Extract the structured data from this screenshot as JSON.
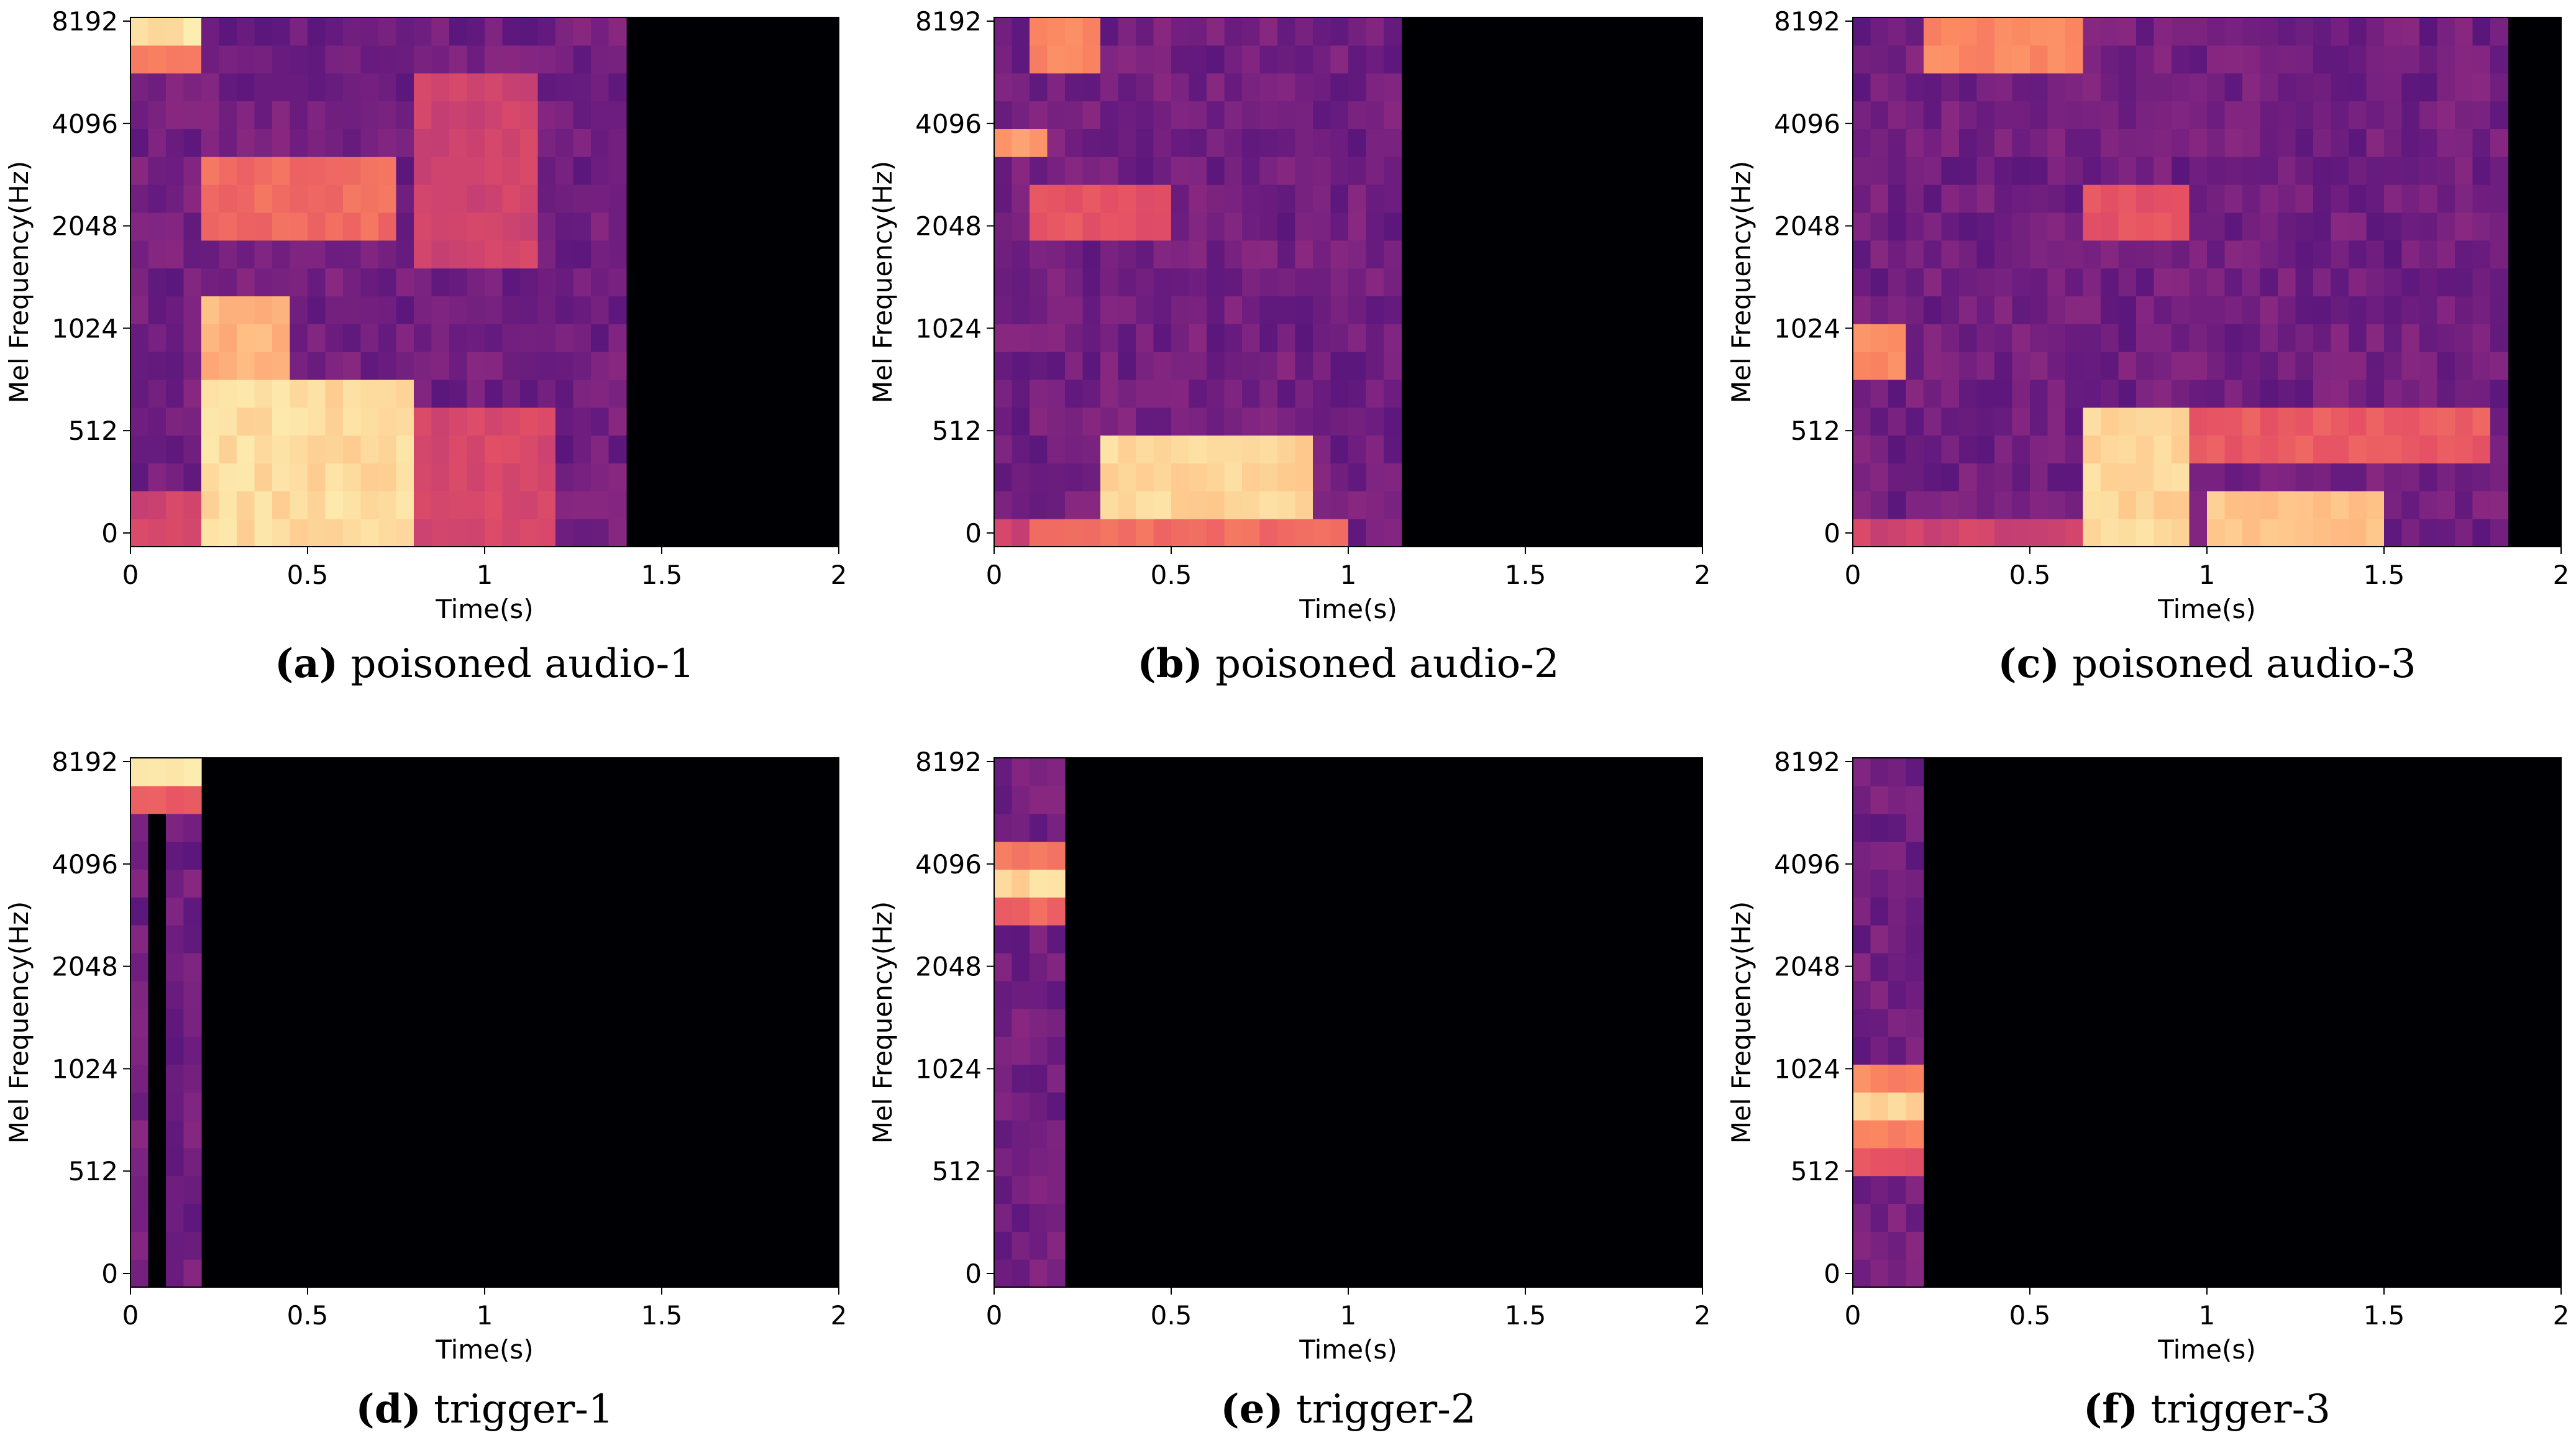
{
  "chart_data": [
    {
      "type": "heatmap",
      "id": "a",
      "caption_letter": "(a)",
      "caption_text": " poisoned audio-1",
      "xlabel": "Time(s)",
      "ylabel": "Mel Frequency(Hz)",
      "xlim": [
        0,
        2
      ],
      "x_ticks": [
        0,
        0.5,
        1,
        1.5,
        2
      ],
      "x_tick_labels": [
        "0",
        "0.5",
        "1",
        "1.5",
        "2"
      ],
      "y_tick_labels": [
        "0",
        "512",
        "1024",
        "2048",
        "4096",
        "8192"
      ],
      "colormap": "magma",
      "active_end_s": 1.42,
      "regions": [
        {
          "t": [
            0.0,
            0.18
          ],
          "mel": [
            0,
            2
          ],
          "level": 0.6
        },
        {
          "t": [
            0.0,
            0.18
          ],
          "mel": [
            18,
            19
          ],
          "level": 0.98
        },
        {
          "t": [
            0.0,
            0.18
          ],
          "mel": [
            17,
            18
          ],
          "level": 0.75
        },
        {
          "t": [
            0.2,
            0.78
          ],
          "mel": [
            0,
            6
          ],
          "level": 0.96
        },
        {
          "t": [
            0.2,
            0.45
          ],
          "mel": [
            6,
            9
          ],
          "level": 0.88
        },
        {
          "t": [
            0.2,
            0.75
          ],
          "mel": [
            11,
            14
          ],
          "level": 0.72
        },
        {
          "t": [
            0.8,
            1.2
          ],
          "mel": [
            0,
            5
          ],
          "level": 0.62
        },
        {
          "t": [
            0.85,
            1.15
          ],
          "mel": [
            10,
            17
          ],
          "level": 0.6
        }
      ]
    },
    {
      "type": "heatmap",
      "id": "b",
      "caption_letter": "(b)",
      "caption_text": " poisoned audio-2",
      "xlabel": "Time(s)",
      "ylabel": "Mel Frequency(Hz)",
      "xlim": [
        0,
        2
      ],
      "x_ticks": [
        0,
        0.5,
        1,
        1.5,
        2
      ],
      "x_tick_labels": [
        "0",
        "0.5",
        "1",
        "1.5",
        "2"
      ],
      "y_tick_labels": [
        "0",
        "512",
        "1024",
        "2048",
        "4096",
        "8192"
      ],
      "colormap": "magma",
      "active_end_s": 1.16,
      "regions": [
        {
          "t": [
            0.3,
            0.9
          ],
          "mel": [
            1,
            4
          ],
          "level": 0.95
        },
        {
          "t": [
            0.15,
            1.0
          ],
          "mel": [
            0,
            1
          ],
          "level": 0.72
        },
        {
          "t": [
            0.0,
            0.15
          ],
          "mel": [
            0,
            1
          ],
          "level": 0.6
        },
        {
          "t": [
            0.0,
            0.15
          ],
          "mel": [
            14,
            15
          ],
          "level": 0.82
        },
        {
          "t": [
            0.15,
            0.3
          ],
          "mel": [
            17,
            19
          ],
          "level": 0.78
        },
        {
          "t": [
            0.15,
            0.5
          ],
          "mel": [
            11,
            13
          ],
          "level": 0.66
        }
      ]
    },
    {
      "type": "heatmap",
      "id": "c",
      "caption_letter": "(c)",
      "caption_text": " poisoned audio-3",
      "xlabel": "Time(s)",
      "ylabel": "Mel Frequency(Hz)",
      "xlim": [
        0,
        2
      ],
      "x_ticks": [
        0,
        0.5,
        1,
        1.5,
        2
      ],
      "x_tick_labels": [
        "0",
        "0.5",
        "1",
        "1.5",
        "2"
      ],
      "y_tick_labels": [
        "0",
        "512",
        "1024",
        "2048",
        "4096",
        "8192"
      ],
      "colormap": "magma",
      "active_end_s": 1.87,
      "regions": [
        {
          "t": [
            0.65,
            0.95
          ],
          "mel": [
            0,
            5
          ],
          "level": 0.95
        },
        {
          "t": [
            1.0,
            1.5
          ],
          "mel": [
            0,
            2
          ],
          "level": 0.92
        },
        {
          "t": [
            0.0,
            0.15
          ],
          "mel": [
            6,
            8
          ],
          "level": 0.8
        },
        {
          "t": [
            0.2,
            0.65
          ],
          "mel": [
            17,
            19
          ],
          "level": 0.78
        },
        {
          "t": [
            0.7,
            0.95
          ],
          "mel": [
            11,
            13
          ],
          "level": 0.66
        },
        {
          "t": [
            0.65,
            1.8
          ],
          "mel": [
            3,
            5
          ],
          "level": 0.68
        },
        {
          "t": [
            0.0,
            0.65
          ],
          "mel": [
            0,
            1
          ],
          "level": 0.6
        }
      ]
    },
    {
      "type": "heatmap",
      "id": "d",
      "caption_letter": "(d)",
      "caption_text": " trigger-1",
      "xlabel": "Time(s)",
      "ylabel": "Mel Frequency(Hz)",
      "xlim": [
        0,
        2
      ],
      "x_ticks": [
        0,
        0.5,
        1,
        1.5,
        2
      ],
      "x_tick_labels": [
        "0",
        "0.5",
        "1",
        "1.5",
        "2"
      ],
      "y_tick_labels": [
        "0",
        "512",
        "1024",
        "2048",
        "4096",
        "8192"
      ],
      "colormap": "magma",
      "active_end_s": 0.18,
      "regions": [
        {
          "t": [
            0.0,
            0.18
          ],
          "mel": [
            18,
            19
          ],
          "level": 0.98
        },
        {
          "t": [
            0.0,
            0.18
          ],
          "mel": [
            17,
            18
          ],
          "level": 0.7
        },
        {
          "t": [
            0.06,
            0.09
          ],
          "mel": [
            0,
            17
          ],
          "level": 0.0
        }
      ]
    },
    {
      "type": "heatmap",
      "id": "e",
      "caption_letter": "(e)",
      "caption_text": " trigger-2",
      "xlabel": "Time(s)",
      "ylabel": "Mel Frequency(Hz)",
      "xlim": [
        0,
        2
      ],
      "x_ticks": [
        0,
        0.5,
        1,
        1.5,
        2
      ],
      "x_tick_labels": [
        "0",
        "0.5",
        "1",
        "1.5",
        "2"
      ],
      "y_tick_labels": [
        "0",
        "512",
        "1024",
        "2048",
        "4096",
        "8192"
      ],
      "colormap": "magma",
      "active_end_s": 0.18,
      "regions": [
        {
          "t": [
            0.0,
            0.18
          ],
          "mel": [
            14,
            15
          ],
          "level": 0.95
        },
        {
          "t": [
            0.0,
            0.18
          ],
          "mel": [
            13,
            14
          ],
          "level": 0.7
        },
        {
          "t": [
            0.0,
            0.18
          ],
          "mel": [
            15,
            16
          ],
          "level": 0.75
        }
      ]
    },
    {
      "type": "heatmap",
      "id": "f",
      "caption_letter": "(f)",
      "caption_text": " trigger-3",
      "xlabel": "Time(s)",
      "ylabel": "Mel Frequency(Hz)",
      "xlim": [
        0,
        2
      ],
      "x_ticks": [
        0,
        0.5,
        1,
        1.5,
        2
      ],
      "x_tick_labels": [
        "0",
        "0.5",
        "1",
        "1.5",
        "2"
      ],
      "y_tick_labels": [
        "0",
        "512",
        "1024",
        "2048",
        "4096",
        "8192"
      ],
      "colormap": "magma",
      "active_end_s": 0.18,
      "regions": [
        {
          "t": [
            0.0,
            0.18
          ],
          "mel": [
            6,
            7
          ],
          "level": 0.95
        },
        {
          "t": [
            0.0,
            0.18
          ],
          "mel": [
            5,
            6
          ],
          "level": 0.78
        },
        {
          "t": [
            0.0,
            0.18
          ],
          "mel": [
            7,
            8
          ],
          "level": 0.78
        },
        {
          "t": [
            0.0,
            0.18
          ],
          "mel": [
            4,
            5
          ],
          "level": 0.66
        }
      ]
    }
  ]
}
